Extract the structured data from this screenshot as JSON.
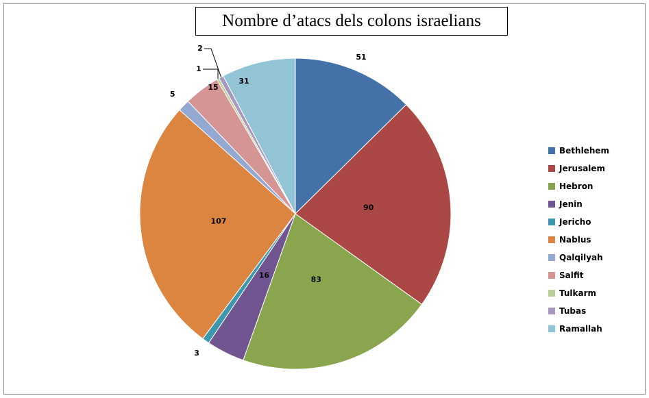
{
  "chart_data": {
    "type": "pie",
    "title": "Nombre d’atacs dels colons israelians",
    "categories": [
      "Bethlehem",
      "Jerusalem",
      "Hebron",
      "Jenin",
      "Jericho",
      "Nablus",
      "Qalqilyah",
      "Salfit",
      "Tulkarm",
      "Tubas",
      "Ramallah"
    ],
    "values": [
      51,
      90,
      83,
      16,
      3,
      107,
      5,
      15,
      1,
      2,
      31
    ],
    "colors": [
      "#4472a8",
      "#ab4744",
      "#89a64e",
      "#715591",
      "#3d97ad",
      "#db8540",
      "#93a9d2",
      "#d69595",
      "#b9cd96",
      "#a898bd",
      "#93c4d5"
    ],
    "data_labels": [
      "51",
      "90",
      "83",
      "16",
      "3",
      "107",
      "5",
      "15",
      "1",
      "2",
      "31"
    ],
    "legend_position": "right",
    "start_angle": "top",
    "direction": "clockwise"
  }
}
